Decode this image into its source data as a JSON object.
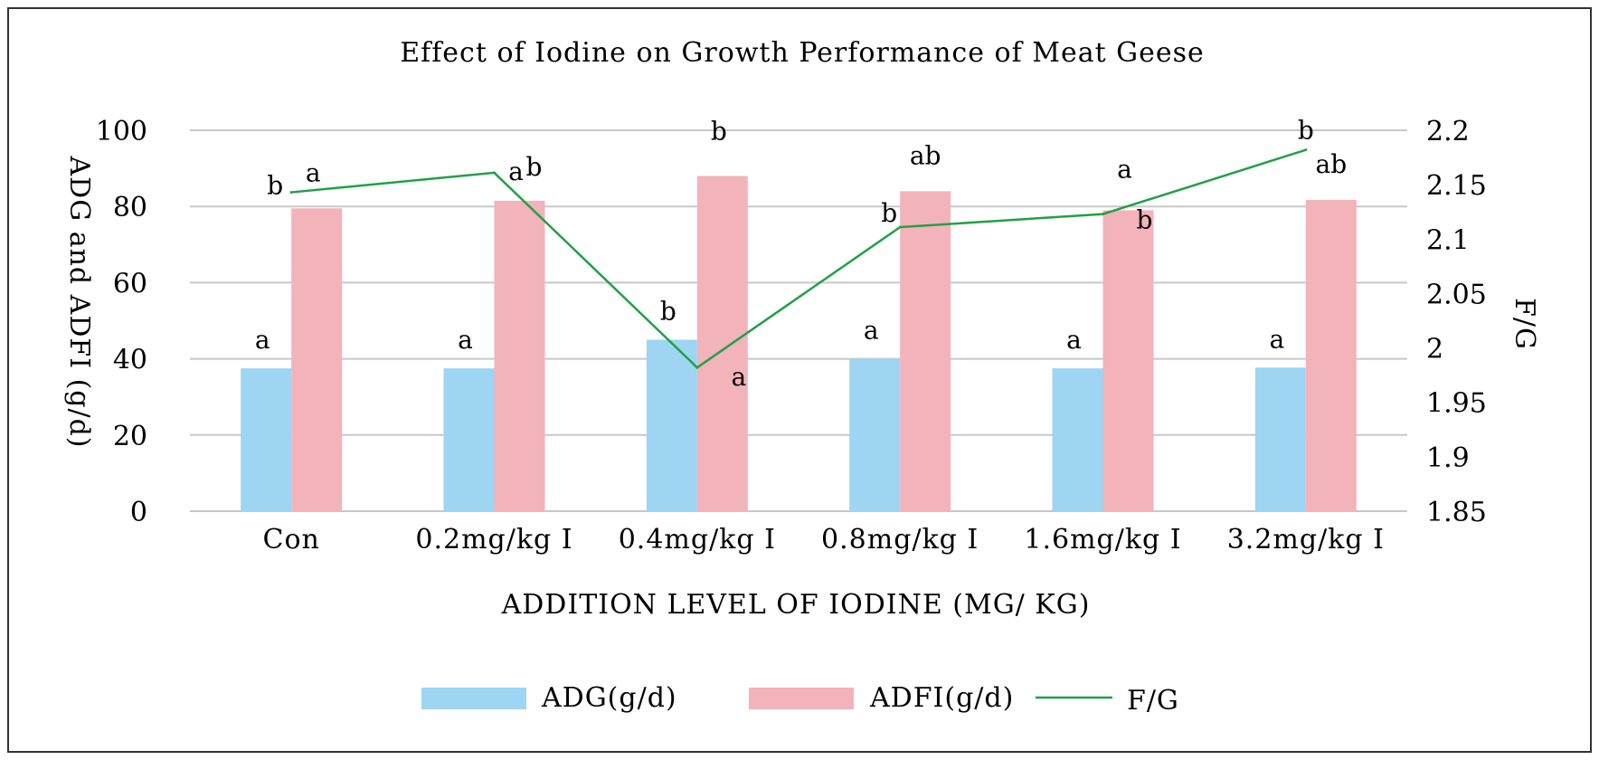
{
  "chart_data": {
    "type": "bar",
    "title": "Effect of Iodine on Growth Performance of Meat Geese",
    "xlabel": "ADDITION LEVEL OF IODINE (MG/ KG)",
    "ylabel": "ADG and ADFI (g/d)",
    "y2label": "F/G",
    "categories": [
      "Con",
      "0.2mg/kg I",
      "0.4mg/kg I",
      "0.8mg/kg I",
      "1.6mg/kg I",
      "3.2mg/kg I"
    ],
    "ylim": [
      0,
      100
    ],
    "yticks": [
      "0",
      "20",
      "40",
      "60",
      "80",
      "100"
    ],
    "y2lim": [
      1.85,
      2.2
    ],
    "y2ticks": [
      "1.85",
      "1.9",
      "1.95",
      "2",
      "2.05",
      "2.1",
      "2.15",
      "2.2"
    ],
    "grid": true,
    "legend_position": "bottom",
    "series": [
      {
        "name": "ADG(g/d)",
        "type": "bar",
        "axis": "left",
        "color": "#9dd5f3",
        "values": [
          37.5,
          37.5,
          45,
          40,
          37.5,
          37.7
        ],
        "labels": [
          "a",
          "a",
          "b",
          "a",
          "a",
          "a"
        ]
      },
      {
        "name": "ADFI(g/d)",
        "type": "bar",
        "axis": "left",
        "color": "#f2b3ba",
        "values": [
          79.5,
          81.5,
          88,
          84,
          79,
          81.7
        ],
        "labels": [
          "a",
          "b",
          "b",
          "ab",
          "a",
          "ab"
        ]
      },
      {
        "name": "F/G",
        "type": "line",
        "axis": "right",
        "color": "#22a045",
        "values": [
          2.143,
          2.161,
          1.982,
          2.111,
          2.123,
          2.182
        ],
        "labels": [
          "b",
          "a",
          "a",
          "b",
          "b",
          "b"
        ]
      }
    ]
  }
}
